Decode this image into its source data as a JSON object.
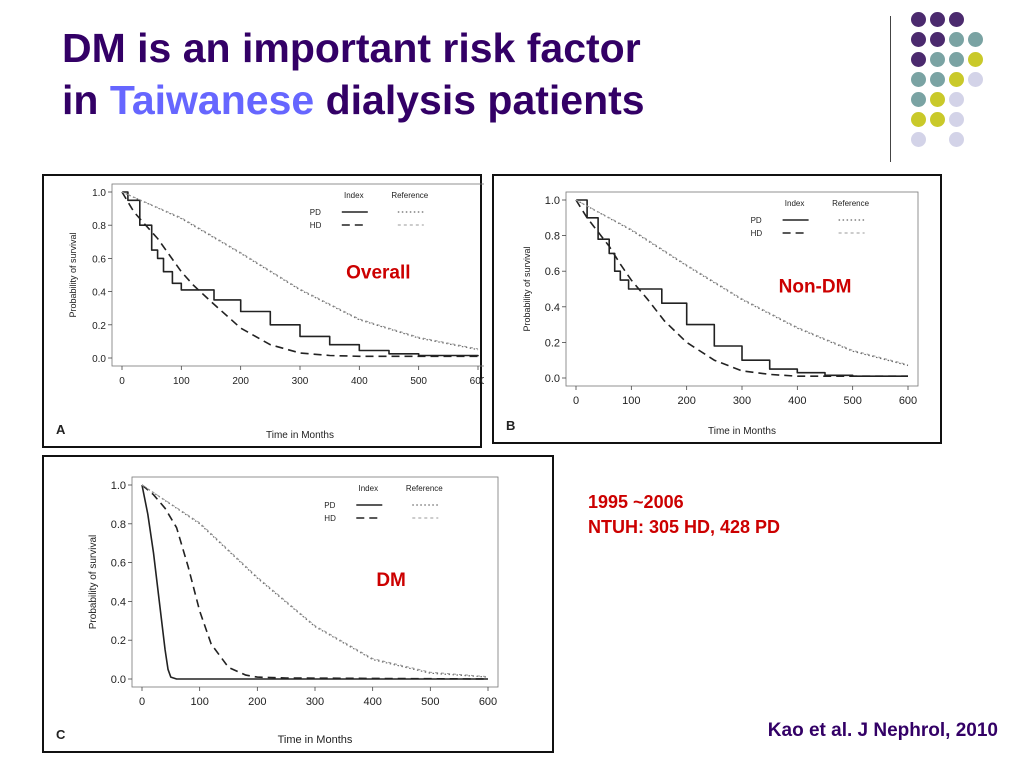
{
  "slide": {
    "title_line1": "DM is an important risk factor",
    "title_line2_pre": "in",
    "title_line2_highlight": "Taiwanese",
    "title_line2_post": "dialysis patients",
    "study_period": "1995 ~2006",
    "study_cohort": "NTUH: 305 HD, 428 PD",
    "citation": "Kao et al. J Nephrol, 2010",
    "colors": {
      "title": "#330066",
      "highlight": "#6666ff",
      "note": "#cc0000",
      "dot_purple": "#4b2a6e",
      "dot_teal": "#7aa3a3",
      "dot_yellow": "#c9c92a",
      "dot_lavender": "#d3d3e8"
    },
    "decor_dots": [
      [
        "purple",
        "purple",
        "purple",
        ""
      ],
      [
        "purple",
        "purple",
        "teal",
        "teal"
      ],
      [
        "purple",
        "teal",
        "teal",
        "yellow"
      ],
      [
        "teal",
        "teal",
        "yellow",
        "lavender"
      ],
      [
        "teal",
        "yellow",
        "lavender",
        ""
      ],
      [
        "yellow",
        "yellow",
        "lavender",
        ""
      ],
      [
        "lavender",
        "",
        "lavender",
        ""
      ]
    ]
  },
  "chart_data": [
    {
      "type": "line",
      "panel_label": "A",
      "annotation": "Overall",
      "xlabel": "Time in Months",
      "ylabel": "Probability of survival",
      "xlim": [
        0,
        600
      ],
      "ylim": [
        0,
        1.0
      ],
      "xticks": [
        "0",
        "100",
        "200",
        "300",
        "400",
        "500",
        "600"
      ],
      "yticks": [
        "0.0",
        "0.2",
        "0.4",
        "0.6",
        "0.8",
        "1.0"
      ],
      "legend": {
        "index_header": "Index",
        "reference_header": "Reference",
        "rows": [
          "PD",
          "HD"
        ]
      },
      "series": [
        {
          "name": "PD",
          "group": "Index",
          "style": "solid",
          "step": true,
          "x": [
            0,
            10,
            30,
            50,
            60,
            70,
            85,
            100,
            120,
            150,
            155,
            200,
            250,
            300,
            350,
            400,
            450,
            500,
            600
          ],
          "y": [
            1.0,
            0.95,
            0.8,
            0.65,
            0.6,
            0.52,
            0.45,
            0.41,
            0.41,
            0.41,
            0.35,
            0.28,
            0.2,
            0.13,
            0.08,
            0.045,
            0.025,
            0.015,
            0.01
          ]
        },
        {
          "name": "HD",
          "group": "Index",
          "style": "dashed",
          "x": [
            0,
            20,
            40,
            60,
            80,
            100,
            120,
            150,
            200,
            250,
            300,
            350,
            400,
            500,
            600
          ],
          "y": [
            1.0,
            0.88,
            0.8,
            0.72,
            0.62,
            0.52,
            0.44,
            0.34,
            0.18,
            0.08,
            0.03,
            0.015,
            0.01,
            0.01,
            0.01
          ]
        },
        {
          "name": "PD",
          "group": "Reference",
          "style": "dotted",
          "x": [
            0,
            100,
            200,
            300,
            400,
            500,
            600
          ],
          "y": [
            1.0,
            0.84,
            0.63,
            0.41,
            0.23,
            0.12,
            0.05
          ]
        },
        {
          "name": "HD",
          "group": "Reference",
          "style": "dotdash",
          "x": [
            0,
            100,
            200,
            300,
            400,
            500,
            600
          ],
          "y": [
            1.0,
            0.845,
            0.635,
            0.415,
            0.235,
            0.125,
            0.055
          ]
        }
      ]
    },
    {
      "type": "line",
      "panel_label": "B",
      "annotation": "Non-DM",
      "xlabel": "Time in Months",
      "ylabel": "Probability of survival",
      "xlim": [
        0,
        600
      ],
      "ylim": [
        0,
        1.0
      ],
      "xticks": [
        "0",
        "100",
        "200",
        "300",
        "400",
        "500",
        "600"
      ],
      "yticks": [
        "0.0",
        "0.2",
        "0.4",
        "0.6",
        "0.8",
        "1.0"
      ],
      "legend": {
        "index_header": "Index",
        "reference_header": "Reference",
        "rows": [
          "PD",
          "HD"
        ]
      },
      "series": [
        {
          "name": "PD",
          "group": "Index",
          "style": "solid",
          "step": true,
          "x": [
            0,
            20,
            40,
            60,
            70,
            80,
            95,
            110,
            140,
            155,
            200,
            250,
            300,
            350,
            400,
            450,
            500,
            600
          ],
          "y": [
            1.0,
            0.9,
            0.78,
            0.7,
            0.6,
            0.55,
            0.5,
            0.5,
            0.5,
            0.42,
            0.3,
            0.18,
            0.1,
            0.05,
            0.03,
            0.015,
            0.01,
            0.01
          ]
        },
        {
          "name": "HD",
          "group": "Index",
          "style": "dashed",
          "x": [
            0,
            20,
            40,
            60,
            80,
            100,
            130,
            160,
            200,
            250,
            300,
            350,
            400,
            500,
            600
          ],
          "y": [
            1.0,
            0.9,
            0.82,
            0.74,
            0.64,
            0.55,
            0.44,
            0.32,
            0.2,
            0.1,
            0.04,
            0.02,
            0.01,
            0.01,
            0.01
          ]
        },
        {
          "name": "PD",
          "group": "Reference",
          "style": "dotted",
          "x": [
            0,
            100,
            200,
            300,
            400,
            500,
            600
          ],
          "y": [
            1.0,
            0.83,
            0.63,
            0.44,
            0.28,
            0.15,
            0.07
          ]
        },
        {
          "name": "HD",
          "group": "Reference",
          "style": "dotdash",
          "x": [
            0,
            100,
            200,
            300,
            400,
            500,
            600
          ],
          "y": [
            1.0,
            0.835,
            0.635,
            0.445,
            0.285,
            0.155,
            0.075
          ]
        }
      ]
    },
    {
      "type": "line",
      "panel_label": "C",
      "annotation": "DM",
      "xlabel": "Time in Months",
      "ylabel": "Probability of survival",
      "xlim": [
        0,
        600
      ],
      "ylim": [
        0,
        1.0
      ],
      "xticks": [
        "0",
        "100",
        "200",
        "300",
        "400",
        "500",
        "600"
      ],
      "yticks": [
        "0.0",
        "0.2",
        "0.4",
        "0.6",
        "0.8",
        "1.0"
      ],
      "legend": {
        "index_header": "Index",
        "reference_header": "Reference",
        "rows": [
          "PD",
          "HD"
        ]
      },
      "series": [
        {
          "name": "PD",
          "group": "Index",
          "style": "solid",
          "x": [
            0,
            10,
            20,
            30,
            40,
            45,
            50,
            60,
            600
          ],
          "y": [
            1.0,
            0.85,
            0.65,
            0.4,
            0.15,
            0.05,
            0.01,
            0.0,
            0.0
          ]
        },
        {
          "name": "HD",
          "group": "Index",
          "style": "dashed",
          "x": [
            0,
            20,
            40,
            60,
            80,
            100,
            120,
            150,
            180,
            200,
            250,
            600
          ],
          "y": [
            1.0,
            0.95,
            0.88,
            0.78,
            0.58,
            0.35,
            0.18,
            0.06,
            0.02,
            0.01,
            0.005,
            0.0
          ]
        },
        {
          "name": "PD",
          "group": "Reference",
          "style": "dotted",
          "x": [
            0,
            100,
            200,
            300,
            400,
            500,
            600
          ],
          "y": [
            1.0,
            0.8,
            0.52,
            0.27,
            0.1,
            0.03,
            0.01
          ]
        },
        {
          "name": "HD",
          "group": "Reference",
          "style": "dotdash",
          "x": [
            0,
            100,
            200,
            300,
            400,
            500,
            600
          ],
          "y": [
            1.0,
            0.805,
            0.525,
            0.275,
            0.105,
            0.035,
            0.012
          ]
        }
      ]
    }
  ]
}
